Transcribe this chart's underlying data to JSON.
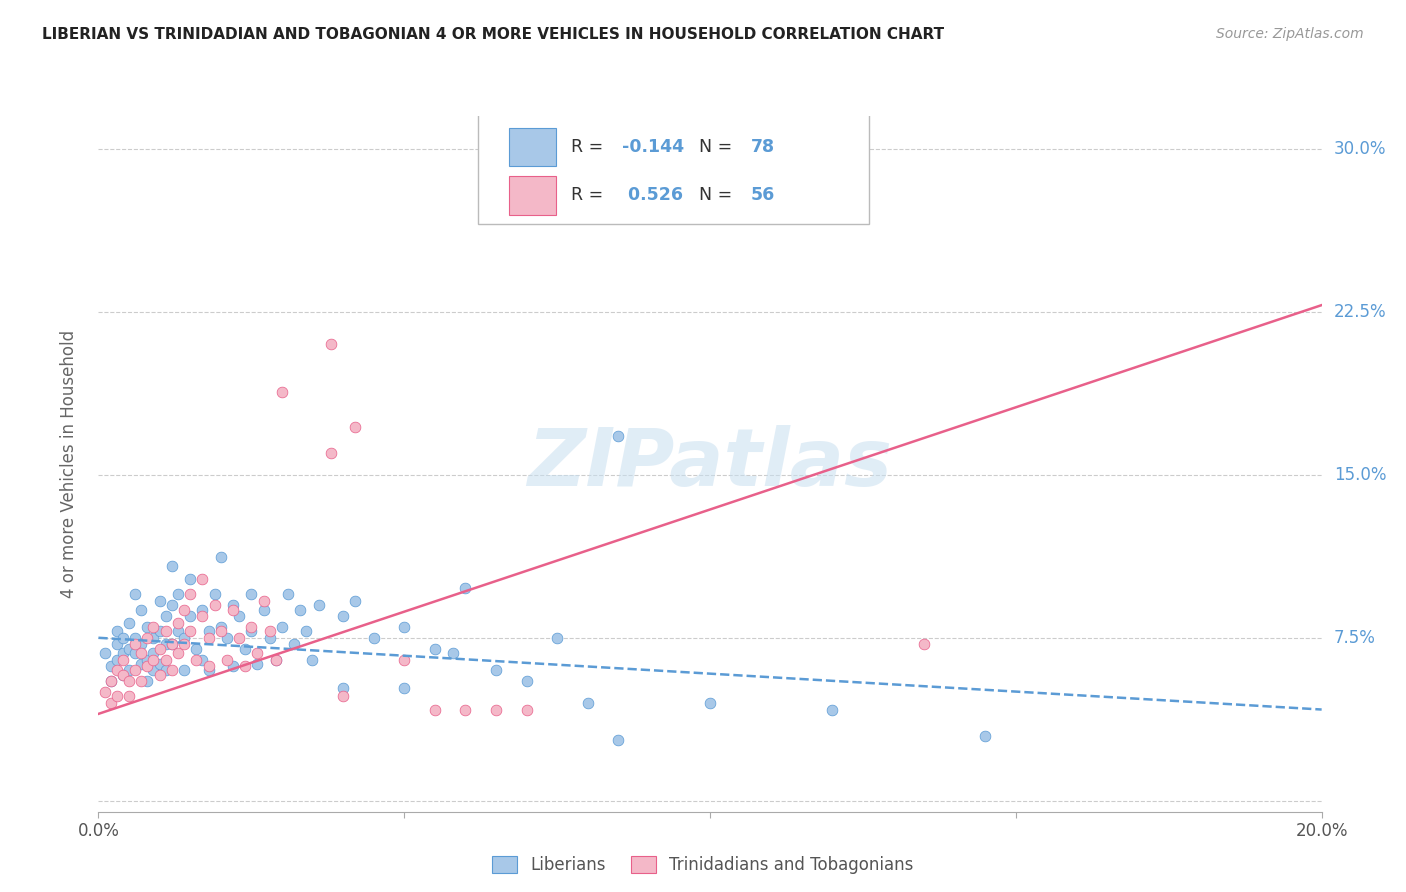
{
  "title": "LIBERIAN VS TRINIDADIAN AND TOBAGONIAN 4 OR MORE VEHICLES IN HOUSEHOLD CORRELATION CHART",
  "source": "Source: ZipAtlas.com",
  "ylabel": "4 or more Vehicles in Household",
  "xlim": [
    0.0,
    0.2
  ],
  "ylim": [
    -0.005,
    0.315
  ],
  "xticks": [
    0.0,
    0.05,
    0.1,
    0.15,
    0.2
  ],
  "xticklabels": [
    "0.0%",
    "",
    "",
    "",
    "20.0%"
  ],
  "yticks": [
    0.0,
    0.075,
    0.15,
    0.225,
    0.3
  ],
  "yticklabels": [
    "",
    "7.5%",
    "15.0%",
    "22.5%",
    "30.0%"
  ],
  "watermark_text": "ZIPatlas",
  "color_blue": "#a8c8e8",
  "color_pink": "#f4b8c8",
  "trendline_blue_color": "#5b9bd5",
  "trendline_pink_color": "#e8608a",
  "blue_scatter": [
    [
      0.001,
      0.068
    ],
    [
      0.002,
      0.062
    ],
    [
      0.002,
      0.055
    ],
    [
      0.003,
      0.072
    ],
    [
      0.003,
      0.065
    ],
    [
      0.003,
      0.078
    ],
    [
      0.004,
      0.058
    ],
    [
      0.004,
      0.075
    ],
    [
      0.004,
      0.068
    ],
    [
      0.005,
      0.082
    ],
    [
      0.005,
      0.07
    ],
    [
      0.005,
      0.06
    ],
    [
      0.006,
      0.095
    ],
    [
      0.006,
      0.075
    ],
    [
      0.006,
      0.068
    ],
    [
      0.007,
      0.072
    ],
    [
      0.007,
      0.088
    ],
    [
      0.007,
      0.063
    ],
    [
      0.008,
      0.08
    ],
    [
      0.008,
      0.065
    ],
    [
      0.008,
      0.055
    ],
    [
      0.009,
      0.075
    ],
    [
      0.009,
      0.068
    ],
    [
      0.009,
      0.06
    ],
    [
      0.01,
      0.092
    ],
    [
      0.01,
      0.078
    ],
    [
      0.01,
      0.063
    ],
    [
      0.011,
      0.085
    ],
    [
      0.011,
      0.072
    ],
    [
      0.011,
      0.06
    ],
    [
      0.012,
      0.108
    ],
    [
      0.012,
      0.09
    ],
    [
      0.012,
      0.072
    ],
    [
      0.013,
      0.095
    ],
    [
      0.013,
      0.078
    ],
    [
      0.014,
      0.075
    ],
    [
      0.014,
      0.06
    ],
    [
      0.015,
      0.102
    ],
    [
      0.015,
      0.085
    ],
    [
      0.016,
      0.07
    ],
    [
      0.017,
      0.088
    ],
    [
      0.017,
      0.065
    ],
    [
      0.018,
      0.078
    ],
    [
      0.018,
      0.06
    ],
    [
      0.019,
      0.095
    ],
    [
      0.02,
      0.112
    ],
    [
      0.02,
      0.08
    ],
    [
      0.021,
      0.075
    ],
    [
      0.022,
      0.062
    ],
    [
      0.022,
      0.09
    ],
    [
      0.023,
      0.085
    ],
    [
      0.024,
      0.07
    ],
    [
      0.025,
      0.095
    ],
    [
      0.025,
      0.078
    ],
    [
      0.026,
      0.063
    ],
    [
      0.027,
      0.088
    ],
    [
      0.028,
      0.075
    ],
    [
      0.029,
      0.065
    ],
    [
      0.03,
      0.08
    ],
    [
      0.031,
      0.095
    ],
    [
      0.032,
      0.072
    ],
    [
      0.033,
      0.088
    ],
    [
      0.034,
      0.078
    ],
    [
      0.035,
      0.065
    ],
    [
      0.036,
      0.09
    ],
    [
      0.04,
      0.085
    ],
    [
      0.042,
      0.092
    ],
    [
      0.045,
      0.075
    ],
    [
      0.05,
      0.08
    ],
    [
      0.055,
      0.07
    ],
    [
      0.058,
      0.068
    ],
    [
      0.06,
      0.098
    ],
    [
      0.065,
      0.06
    ],
    [
      0.07,
      0.055
    ],
    [
      0.075,
      0.075
    ],
    [
      0.08,
      0.045
    ],
    [
      0.085,
      0.028
    ],
    [
      0.1,
      0.045
    ],
    [
      0.12,
      0.042
    ],
    [
      0.145,
      0.03
    ],
    [
      0.04,
      0.052
    ],
    [
      0.05,
      0.052
    ],
    [
      0.085,
      0.168
    ]
  ],
  "pink_scatter": [
    [
      0.001,
      0.05
    ],
    [
      0.002,
      0.055
    ],
    [
      0.002,
      0.045
    ],
    [
      0.003,
      0.06
    ],
    [
      0.003,
      0.048
    ],
    [
      0.004,
      0.058
    ],
    [
      0.004,
      0.065
    ],
    [
      0.005,
      0.055
    ],
    [
      0.005,
      0.048
    ],
    [
      0.006,
      0.072
    ],
    [
      0.006,
      0.06
    ],
    [
      0.007,
      0.068
    ],
    [
      0.007,
      0.055
    ],
    [
      0.008,
      0.075
    ],
    [
      0.008,
      0.062
    ],
    [
      0.009,
      0.08
    ],
    [
      0.009,
      0.065
    ],
    [
      0.01,
      0.07
    ],
    [
      0.01,
      0.058
    ],
    [
      0.011,
      0.078
    ],
    [
      0.011,
      0.065
    ],
    [
      0.012,
      0.072
    ],
    [
      0.012,
      0.06
    ],
    [
      0.013,
      0.082
    ],
    [
      0.013,
      0.068
    ],
    [
      0.014,
      0.088
    ],
    [
      0.014,
      0.072
    ],
    [
      0.015,
      0.095
    ],
    [
      0.015,
      0.078
    ],
    [
      0.016,
      0.065
    ],
    [
      0.017,
      0.102
    ],
    [
      0.017,
      0.085
    ],
    [
      0.018,
      0.075
    ],
    [
      0.018,
      0.062
    ],
    [
      0.019,
      0.09
    ],
    [
      0.02,
      0.078
    ],
    [
      0.021,
      0.065
    ],
    [
      0.022,
      0.088
    ],
    [
      0.023,
      0.075
    ],
    [
      0.024,
      0.062
    ],
    [
      0.025,
      0.08
    ],
    [
      0.026,
      0.068
    ],
    [
      0.027,
      0.092
    ],
    [
      0.028,
      0.078
    ],
    [
      0.029,
      0.065
    ],
    [
      0.03,
      0.188
    ],
    [
      0.038,
      0.21
    ],
    [
      0.038,
      0.16
    ],
    [
      0.042,
      0.172
    ],
    [
      0.055,
      0.042
    ],
    [
      0.06,
      0.042
    ],
    [
      0.065,
      0.042
    ],
    [
      0.07,
      0.042
    ],
    [
      0.135,
      0.072
    ],
    [
      0.04,
      0.048
    ],
    [
      0.05,
      0.065
    ]
  ],
  "blue_trend_x": [
    0.0,
    0.2
  ],
  "blue_trend_y": [
    0.075,
    0.042
  ],
  "pink_trend_x": [
    0.0,
    0.2
  ],
  "pink_trend_y": [
    0.04,
    0.228
  ]
}
